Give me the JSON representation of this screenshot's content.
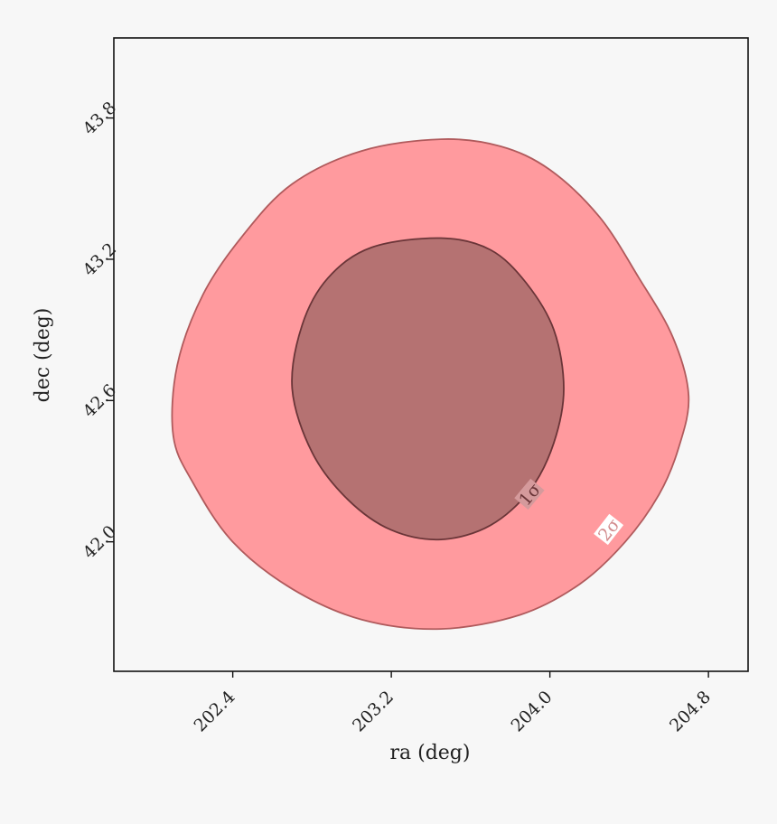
{
  "chart_data": {
    "type": "contour",
    "title": "",
    "xlabel": "ra (deg)",
    "ylabel": "dec (deg)",
    "xlim": [
      201.8,
      205.0
    ],
    "ylim": [
      41.45,
      44.14
    ],
    "xticks": [
      202.4,
      203.2,
      204.0,
      204.8
    ],
    "xtick_labels": [
      "202.4",
      "203.2",
      "204.0",
      "204.8"
    ],
    "yticks": [
      42.0,
      42.6,
      43.2,
      43.8
    ],
    "ytick_labels": [
      "42.0",
      "42.6",
      "43.2",
      "43.8"
    ],
    "grid": false,
    "legend": "none",
    "levels": [
      {
        "name": "2σ",
        "label": "2σ",
        "fill": "#ff9a9e",
        "stroke": "#b05a5c",
        "points": [
          [
            203.45,
            43.71
          ],
          [
            203.75,
            43.68
          ],
          [
            204.0,
            43.58
          ],
          [
            204.25,
            43.38
          ],
          [
            204.45,
            43.12
          ],
          [
            204.62,
            42.87
          ],
          [
            204.7,
            42.62
          ],
          [
            204.65,
            42.4
          ],
          [
            204.55,
            42.2
          ],
          [
            204.38,
            42.0
          ],
          [
            204.15,
            41.82
          ],
          [
            203.85,
            41.69
          ],
          [
            203.45,
            41.63
          ],
          [
            203.05,
            41.67
          ],
          [
            202.7,
            41.8
          ],
          [
            202.4,
            42.0
          ],
          [
            202.2,
            42.25
          ],
          [
            202.1,
            42.45
          ],
          [
            202.12,
            42.75
          ],
          [
            202.25,
            43.05
          ],
          [
            202.45,
            43.3
          ],
          [
            202.7,
            43.52
          ],
          [
            203.05,
            43.66
          ]
        ]
      },
      {
        "name": "1σ",
        "label": "1σ",
        "fill": "#b57272",
        "stroke": "#6a3538",
        "points": [
          [
            203.45,
            43.29
          ],
          [
            203.7,
            43.24
          ],
          [
            203.88,
            43.1
          ],
          [
            204.02,
            42.9
          ],
          [
            204.07,
            42.65
          ],
          [
            204.02,
            42.42
          ],
          [
            203.9,
            42.22
          ],
          [
            203.7,
            42.07
          ],
          [
            203.45,
            42.01
          ],
          [
            203.2,
            42.05
          ],
          [
            202.98,
            42.18
          ],
          [
            202.8,
            42.38
          ],
          [
            202.7,
            42.65
          ],
          [
            202.75,
            42.92
          ],
          [
            202.88,
            43.12
          ],
          [
            203.1,
            43.25
          ]
        ]
      }
    ]
  }
}
